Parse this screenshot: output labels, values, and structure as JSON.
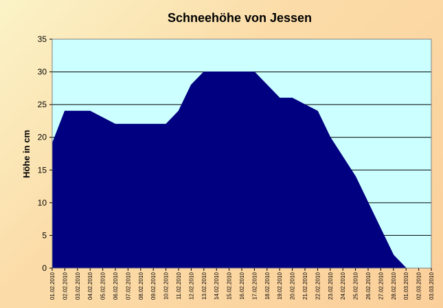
{
  "chart_data": {
    "type": "area",
    "title": "Schneehöhe von Jessen",
    "xlabel": "",
    "ylabel": "Höhe in cm",
    "ylim": [
      0,
      35
    ],
    "yticks": [
      0,
      5,
      10,
      15,
      20,
      25,
      30,
      35
    ],
    "grid": true,
    "legend": "none",
    "colors": {
      "area": "#000080",
      "plot_background": "#ccffff",
      "gridline": "#000000"
    },
    "categories": [
      "01.02.2010",
      "02.02.2010",
      "03.02.2010",
      "04.02.2010",
      "05.02.2010",
      "06.02.2010",
      "07.02.2010",
      "08.02.2010",
      "09.02.2010",
      "10.02.2010",
      "11.02.2010",
      "12.02.2010",
      "13.02.2010",
      "14.02.2010",
      "15.02.2010",
      "16.02.2010",
      "17.02.2010",
      "18.02.2010",
      "19.02.2010",
      "20.02.2010",
      "21.02.2010",
      "22.02.2010",
      "23.02.2010",
      "24.02.2010",
      "25.02.2010",
      "26.02.2010",
      "27.02.2010",
      "28.02.2010",
      "01.03.2010",
      "02.03.2010",
      "03.03.2010"
    ],
    "values": [
      19,
      24,
      24,
      24,
      23,
      22,
      22,
      22,
      22,
      22,
      24,
      28,
      30,
      30,
      30,
      30,
      30,
      28,
      26,
      26,
      25,
      24,
      20,
      17,
      14,
      10,
      6,
      2,
      0,
      0,
      0
    ]
  }
}
